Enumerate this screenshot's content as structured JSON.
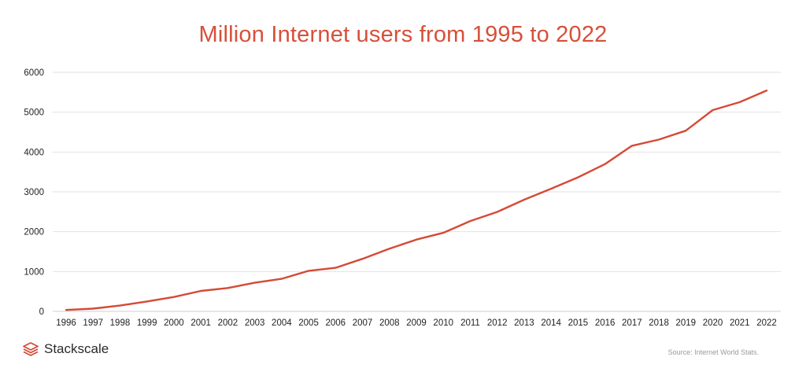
{
  "title": "Million Internet users from 1995 to 2022",
  "brand": {
    "name": "Stackscale",
    "logo_icon": "stackscale-logo-icon"
  },
  "source_note": "Source: Internet World Stats.",
  "colors": {
    "line": "#d44a36",
    "title": "#d6503a",
    "grid": "#e2e2e2",
    "logo": "#d44a36"
  },
  "chart_data": {
    "type": "line",
    "title": "Million Internet users from 1995 to 2022",
    "x": [
      "1996",
      "1997",
      "1998",
      "1999",
      "2000",
      "2001",
      "2002",
      "2003",
      "2004",
      "2005",
      "2006",
      "2007",
      "2008",
      "2009",
      "2010",
      "2011",
      "2012",
      "2013",
      "2014",
      "2015",
      "2016",
      "2017",
      "2018",
      "2019",
      "2020",
      "2021",
      "2022"
    ],
    "series": [
      {
        "values": [
          36,
          70,
          147,
          248,
          361,
          513,
          587,
          719,
          817,
          1018,
          1093,
          1319,
          1574,
          1802,
          1971,
          2267,
          2497,
          2802,
          3079,
          3366,
          3696,
          4156,
          4313,
          4536,
          5053,
          5252,
          5544
        ]
      }
    ],
    "y_ticks": [
      0,
      1000,
      2000,
      3000,
      4000,
      5000,
      6000
    ],
    "ylim": [
      0,
      6000
    ],
    "xlabel": "",
    "ylabel": "",
    "grid": "horizontal",
    "legend": "none"
  }
}
